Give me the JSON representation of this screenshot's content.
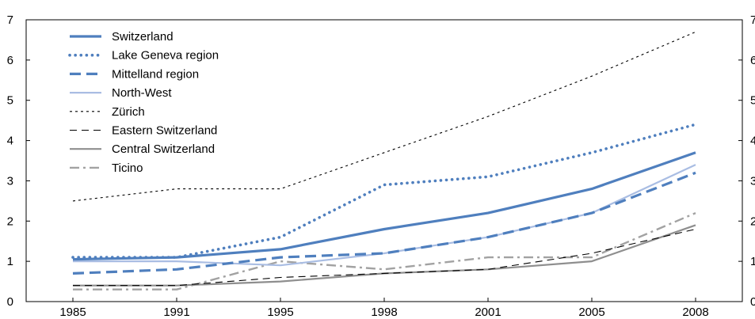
{
  "chart_data": {
    "type": "line",
    "title": "",
    "xlabel": "",
    "ylabel": "",
    "categories": [
      "1985",
      "1991",
      "1995",
      "1998",
      "2001",
      "2005",
      "2008"
    ],
    "ylim": [
      0,
      7
    ],
    "yticks": [
      0,
      1,
      2,
      3,
      4,
      5,
      6,
      7
    ],
    "grid": false,
    "legend_position": "top-left",
    "series": [
      {
        "name": "Switzerland",
        "values": [
          1.05,
          1.1,
          1.3,
          1.8,
          2.2,
          2.8,
          3.7
        ],
        "color": "#4f7fbe",
        "style": "solid-thick"
      },
      {
        "name": "Lake Geneva region",
        "values": [
          1.1,
          1.1,
          1.6,
          2.9,
          3.1,
          3.7,
          4.4
        ],
        "color": "#4f7fbe",
        "style": "dotted-thick"
      },
      {
        "name": "Mittelland region",
        "values": [
          0.7,
          0.8,
          1.1,
          1.2,
          1.6,
          2.2,
          3.2
        ],
        "color": "#4f7fbe",
        "style": "dashed-thick"
      },
      {
        "name": "North-West",
        "values": [
          1.0,
          1.0,
          0.9,
          1.2,
          1.6,
          2.2,
          3.4
        ],
        "color": "#a9bde3",
        "style": "solid"
      },
      {
        "name": "Zürich",
        "values": [
          2.5,
          2.8,
          2.8,
          3.7,
          4.6,
          5.6,
          6.7
        ],
        "color": "#000000",
        "style": "dotted-thin"
      },
      {
        "name": "Eastern Switzerland",
        "values": [
          0.4,
          0.4,
          0.6,
          0.7,
          0.8,
          1.2,
          1.8
        ],
        "color": "#000000",
        "style": "dashed-thin"
      },
      {
        "name": "Central Switzerland",
        "values": [
          0.4,
          0.4,
          0.5,
          0.7,
          0.8,
          1.0,
          1.9
        ],
        "color": "#8e8e8e",
        "style": "solid"
      },
      {
        "name": "Ticino",
        "values": [
          0.3,
          0.3,
          1.0,
          0.8,
          1.1,
          1.1,
          2.2
        ],
        "color": "#a2a2a2",
        "style": "dashdot"
      }
    ]
  }
}
